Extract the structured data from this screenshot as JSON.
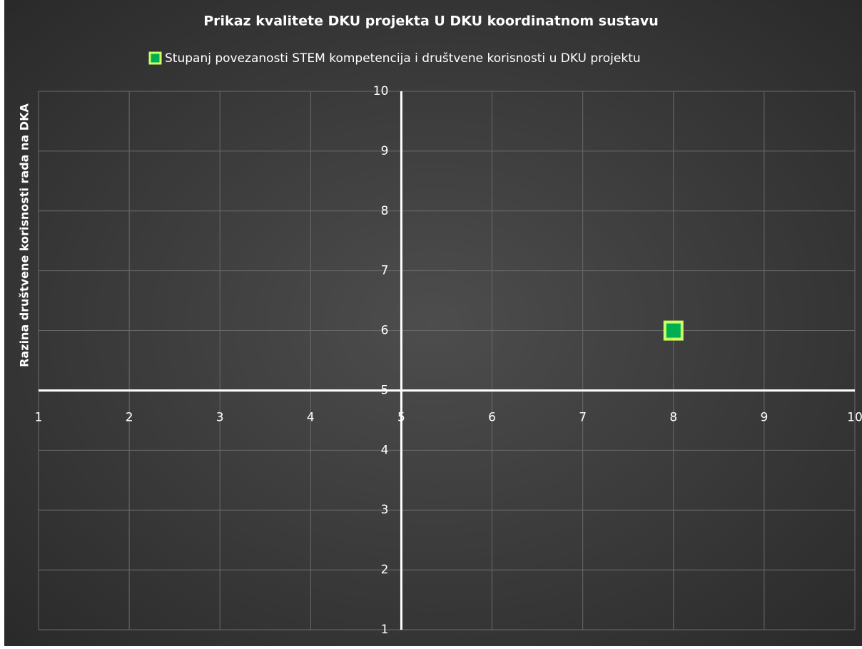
{
  "chart_data": {
    "type": "scatter",
    "title": "Prikaz kvalitete DKU projekta U DKU koordinatnom sustavu",
    "y_label": "Razina društvene korisnosti rada na DKA",
    "series": [
      {
        "name": "Stupanj povezanosti STEM kompetencija i društvene korisnosti u DKU projektu",
        "color": "#00b050",
        "edge_color": "#ccff66",
        "x": [
          8
        ],
        "values": [
          6
        ]
      }
    ],
    "xlim": [
      1,
      10
    ],
    "ylim": [
      1,
      10
    ],
    "xticks": [
      1,
      2,
      3,
      4,
      5,
      6,
      7,
      8,
      9,
      10
    ],
    "yticks": [
      1,
      2,
      3,
      4,
      5,
      6,
      7,
      8,
      9,
      10
    ],
    "x_axis_at": 5,
    "y_axis_at": 5,
    "grid": true,
    "legend": "top"
  }
}
